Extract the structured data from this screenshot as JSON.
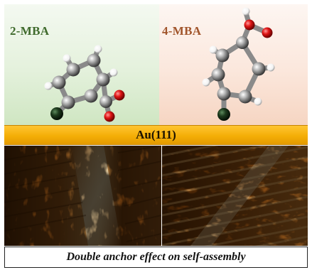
{
  "labels": {
    "left_molecule": "2-MBA",
    "right_molecule": "4-MBA",
    "substrate": "Au(111)",
    "caption": "Double anchor effect on self-assembly"
  },
  "colors": {
    "left_label": "#3f6a2c",
    "right_label": "#a1552b",
    "gold": "#f4ae06",
    "carbon": "#8f8f8f",
    "oxygen": "#e01515",
    "hydrogen": "#ffffff",
    "sulfur": "#1d3a1d"
  }
}
